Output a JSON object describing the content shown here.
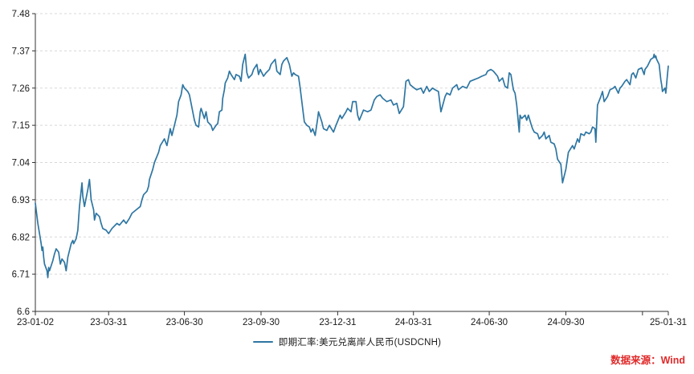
{
  "legend": {
    "label": "即期汇率:美元兑离岸人民币(USDCNH)"
  },
  "source": {
    "text": "数据来源：Wind",
    "color": "#e02a2a"
  },
  "colors": {
    "background": "#ffffff",
    "axis": "#333333",
    "grid": "#d8d8d8",
    "tick_text": "#1a1a1a",
    "series": "#2e76a2"
  },
  "chart_data": {
    "type": "line",
    "title": "",
    "xlabel": "",
    "ylabel": "",
    "grid": "horizontal-dashed",
    "legend_position": "bottom-center",
    "series_name": "即期汇率:美元兑离岸人民币(USDCNH)",
    "y_axis": {
      "min": 6.6,
      "max": 7.48,
      "ticks": [
        {
          "v": 6.6,
          "label": "6.6"
        },
        {
          "v": 6.71,
          "label": "6.71"
        },
        {
          "v": 6.82,
          "label": "6.82"
        },
        {
          "v": 6.93,
          "label": "6.93"
        },
        {
          "v": 7.04,
          "label": "7.04"
        },
        {
          "v": 7.15,
          "label": "7.15"
        },
        {
          "v": 7.26,
          "label": "7.26"
        },
        {
          "v": 7.37,
          "label": "7.37"
        },
        {
          "v": 7.48,
          "label": "7.48"
        }
      ]
    },
    "x_axis": {
      "start": "2023-01-02",
      "end": "2025-01-31",
      "ticks": [
        {
          "d": "2023-01-02",
          "label": "23-01-02"
        },
        {
          "d": "2023-03-31",
          "label": "23-03-31"
        },
        {
          "d": "2023-06-30",
          "label": "23-06-30"
        },
        {
          "d": "2023-09-30",
          "label": "23-09-30"
        },
        {
          "d": "2023-12-31",
          "label": "23-12-31"
        },
        {
          "d": "2024-03-31",
          "label": "24-03-31"
        },
        {
          "d": "2024-06-30",
          "label": "24-06-30"
        },
        {
          "d": "2024-09-30",
          "label": "24-09-30"
        },
        {
          "d": "2024-12-31",
          "label": ""
        },
        {
          "d": "2025-01-31",
          "label": "25-01-31"
        }
      ]
    },
    "points": [
      [
        "2023-01-02",
        6.92
      ],
      [
        "2023-01-04",
        6.88
      ],
      [
        "2023-01-05",
        6.86
      ],
      [
        "2023-01-09",
        6.8
      ],
      [
        "2023-01-10",
        6.78
      ],
      [
        "2023-01-11",
        6.79
      ],
      [
        "2023-01-12",
        6.76
      ],
      [
        "2023-01-13",
        6.74
      ],
      [
        "2023-01-16",
        6.72
      ],
      [
        "2023-01-17",
        6.7
      ],
      [
        "2023-01-18",
        6.73
      ],
      [
        "2023-01-19",
        6.72
      ],
      [
        "2023-01-23",
        6.75
      ],
      [
        "2023-01-25",
        6.77
      ],
      [
        "2023-01-27",
        6.785
      ],
      [
        "2023-01-30",
        6.775
      ],
      [
        "2023-02-01",
        6.74
      ],
      [
        "2023-02-03",
        6.755
      ],
      [
        "2023-02-06",
        6.745
      ],
      [
        "2023-02-08",
        6.72
      ],
      [
        "2023-02-10",
        6.76
      ],
      [
        "2023-02-14",
        6.8
      ],
      [
        "2023-02-16",
        6.81
      ],
      [
        "2023-02-17",
        6.8
      ],
      [
        "2023-02-20",
        6.815
      ],
      [
        "2023-02-22",
        6.84
      ],
      [
        "2023-02-24",
        6.91
      ],
      [
        "2023-02-27",
        6.98
      ],
      [
        "2023-02-28",
        6.94
      ],
      [
        "2023-03-02",
        6.91
      ],
      [
        "2023-03-06",
        6.96
      ],
      [
        "2023-03-08",
        6.99
      ],
      [
        "2023-03-10",
        6.93
      ],
      [
        "2023-03-13",
        6.9
      ],
      [
        "2023-03-14",
        6.87
      ],
      [
        "2023-03-16",
        6.89
      ],
      [
        "2023-03-20",
        6.88
      ],
      [
        "2023-03-22",
        6.86
      ],
      [
        "2023-03-24",
        6.845
      ],
      [
        "2023-03-28",
        6.84
      ],
      [
        "2023-03-31",
        6.83
      ],
      [
        "2023-04-04",
        6.845
      ],
      [
        "2023-04-10",
        6.86
      ],
      [
        "2023-04-13",
        6.855
      ],
      [
        "2023-04-18",
        6.87
      ],
      [
        "2023-04-21",
        6.86
      ],
      [
        "2023-04-25",
        6.875
      ],
      [
        "2023-04-28",
        6.89
      ],
      [
        "2023-05-03",
        6.9
      ],
      [
        "2023-05-08",
        6.91
      ],
      [
        "2023-05-10",
        6.93
      ],
      [
        "2023-05-12",
        6.945
      ],
      [
        "2023-05-16",
        6.955
      ],
      [
        "2023-05-18",
        6.97
      ],
      [
        "2023-05-19",
        6.99
      ],
      [
        "2023-05-23",
        7.02
      ],
      [
        "2023-05-25",
        7.04
      ],
      [
        "2023-05-30",
        7.07
      ],
      [
        "2023-06-01",
        7.09
      ],
      [
        "2023-06-06",
        7.11
      ],
      [
        "2023-06-09",
        7.09
      ],
      [
        "2023-06-13",
        7.14
      ],
      [
        "2023-06-15",
        7.12
      ],
      [
        "2023-06-19",
        7.16
      ],
      [
        "2023-06-21",
        7.18
      ],
      [
        "2023-06-23",
        7.22
      ],
      [
        "2023-06-26",
        7.24
      ],
      [
        "2023-06-28",
        7.27
      ],
      [
        "2023-06-30",
        7.26
      ],
      [
        "2023-07-04",
        7.25
      ],
      [
        "2023-07-06",
        7.24
      ],
      [
        "2023-07-10",
        7.19
      ],
      [
        "2023-07-12",
        7.165
      ],
      [
        "2023-07-14",
        7.15
      ],
      [
        "2023-07-17",
        7.145
      ],
      [
        "2023-07-19",
        7.19
      ],
      [
        "2023-07-20",
        7.2
      ],
      [
        "2023-07-24",
        7.17
      ],
      [
        "2023-07-26",
        7.19
      ],
      [
        "2023-07-28",
        7.16
      ],
      [
        "2023-08-01",
        7.15
      ],
      [
        "2023-08-03",
        7.135
      ],
      [
        "2023-08-07",
        7.15
      ],
      [
        "2023-08-09",
        7.155
      ],
      [
        "2023-08-11",
        7.19
      ],
      [
        "2023-08-14",
        7.195
      ],
      [
        "2023-08-15",
        7.23
      ],
      [
        "2023-08-17",
        7.255
      ],
      [
        "2023-08-18",
        7.275
      ],
      [
        "2023-08-21",
        7.29
      ],
      [
        "2023-08-23",
        7.31
      ],
      [
        "2023-08-25",
        7.3
      ],
      [
        "2023-08-29",
        7.285
      ],
      [
        "2023-08-31",
        7.3
      ],
      [
        "2023-09-04",
        7.295
      ],
      [
        "2023-09-06",
        7.28
      ],
      [
        "2023-09-08",
        7.33
      ],
      [
        "2023-09-11",
        7.36
      ],
      [
        "2023-09-13",
        7.305
      ],
      [
        "2023-09-15",
        7.29
      ],
      [
        "2023-09-19",
        7.3
      ],
      [
        "2023-09-21",
        7.315
      ],
      [
        "2023-09-25",
        7.33
      ],
      [
        "2023-09-27",
        7.3
      ],
      [
        "2023-09-29",
        7.315
      ],
      [
        "2023-10-03",
        7.295
      ],
      [
        "2023-10-06",
        7.305
      ],
      [
        "2023-10-10",
        7.315
      ],
      [
        "2023-10-12",
        7.33
      ],
      [
        "2023-10-17",
        7.345
      ],
      [
        "2023-10-19",
        7.31
      ],
      [
        "2023-10-23",
        7.3
      ],
      [
        "2023-10-25",
        7.33
      ],
      [
        "2023-10-27",
        7.34
      ],
      [
        "2023-10-31",
        7.35
      ],
      [
        "2023-11-03",
        7.33
      ],
      [
        "2023-11-06",
        7.295
      ],
      [
        "2023-11-08",
        7.305
      ],
      [
        "2023-11-10",
        7.3
      ],
      [
        "2023-11-14",
        7.295
      ],
      [
        "2023-11-16",
        7.26
      ],
      [
        "2023-11-17",
        7.24
      ],
      [
        "2023-11-20",
        7.18
      ],
      [
        "2023-11-21",
        7.16
      ],
      [
        "2023-11-24",
        7.15
      ],
      [
        "2023-11-27",
        7.145
      ],
      [
        "2023-11-29",
        7.13
      ],
      [
        "2023-12-01",
        7.14
      ],
      [
        "2023-12-04",
        7.12
      ],
      [
        "2023-12-07",
        7.17
      ],
      [
        "2023-12-08",
        7.19
      ],
      [
        "2023-12-12",
        7.16
      ],
      [
        "2023-12-14",
        7.14
      ],
      [
        "2023-12-18",
        7.135
      ],
      [
        "2023-12-21",
        7.15
      ],
      [
        "2023-12-26",
        7.13
      ],
      [
        "2023-12-29",
        7.15
      ],
      [
        "2024-01-03",
        7.18
      ],
      [
        "2024-01-05",
        7.17
      ],
      [
        "2024-01-10",
        7.19
      ],
      [
        "2024-01-12",
        7.2
      ],
      [
        "2024-01-16",
        7.19
      ],
      [
        "2024-01-18",
        7.22
      ],
      [
        "2024-01-22",
        7.22
      ],
      [
        "2024-01-24",
        7.18
      ],
      [
        "2024-01-26",
        7.165
      ],
      [
        "2024-01-31",
        7.195
      ],
      [
        "2024-02-05",
        7.19
      ],
      [
        "2024-02-09",
        7.195
      ],
      [
        "2024-02-13",
        7.225
      ],
      [
        "2024-02-16",
        7.235
      ],
      [
        "2024-02-20",
        7.24
      ],
      [
        "2024-02-23",
        7.23
      ],
      [
        "2024-02-28",
        7.22
      ],
      [
        "2024-03-04",
        7.225
      ],
      [
        "2024-03-07",
        7.21
      ],
      [
        "2024-03-11",
        7.215
      ],
      [
        "2024-03-14",
        7.185
      ],
      [
        "2024-03-19",
        7.205
      ],
      [
        "2024-03-22",
        7.28
      ],
      [
        "2024-03-25",
        7.285
      ],
      [
        "2024-03-27",
        7.27
      ],
      [
        "2024-04-01",
        7.26
      ],
      [
        "2024-04-04",
        7.255
      ],
      [
        "2024-04-09",
        7.26
      ],
      [
        "2024-04-12",
        7.245
      ],
      [
        "2024-04-16",
        7.265
      ],
      [
        "2024-04-19",
        7.25
      ],
      [
        "2024-04-23",
        7.26
      ],
      [
        "2024-04-26",
        7.255
      ],
      [
        "2024-04-30",
        7.25
      ],
      [
        "2024-05-03",
        7.19
      ],
      [
        "2024-05-08",
        7.235
      ],
      [
        "2024-05-10",
        7.245
      ],
      [
        "2024-05-14",
        7.24
      ],
      [
        "2024-05-17",
        7.26
      ],
      [
        "2024-05-22",
        7.27
      ],
      [
        "2024-05-24",
        7.255
      ],
      [
        "2024-05-29",
        7.265
      ],
      [
        "2024-06-03",
        7.26
      ],
      [
        "2024-06-07",
        7.28
      ],
      [
        "2024-06-12",
        7.285
      ],
      [
        "2024-06-17",
        7.29
      ],
      [
        "2024-06-21",
        7.295
      ],
      [
        "2024-06-26",
        7.3
      ],
      [
        "2024-06-28",
        7.31
      ],
      [
        "2024-07-02",
        7.315
      ],
      [
        "2024-07-05",
        7.31
      ],
      [
        "2024-07-10",
        7.295
      ],
      [
        "2024-07-12",
        7.28
      ],
      [
        "2024-07-16",
        7.29
      ],
      [
        "2024-07-19",
        7.265
      ],
      [
        "2024-07-22",
        7.26
      ],
      [
        "2024-07-24",
        7.305
      ],
      [
        "2024-07-26",
        7.3
      ],
      [
        "2024-07-29",
        7.255
      ],
      [
        "2024-07-31",
        7.245
      ],
      [
        "2024-08-02",
        7.21
      ],
      [
        "2024-08-05",
        7.13
      ],
      [
        "2024-08-06",
        7.18
      ],
      [
        "2024-08-08",
        7.17
      ],
      [
        "2024-08-12",
        7.18
      ],
      [
        "2024-08-14",
        7.165
      ],
      [
        "2024-08-16",
        7.18
      ],
      [
        "2024-08-19",
        7.155
      ],
      [
        "2024-08-21",
        7.14
      ],
      [
        "2024-08-23",
        7.13
      ],
      [
        "2024-08-27",
        7.125
      ],
      [
        "2024-08-29",
        7.11
      ],
      [
        "2024-09-02",
        7.12
      ],
      [
        "2024-09-04",
        7.13
      ],
      [
        "2024-09-06",
        7.11
      ],
      [
        "2024-09-10",
        7.12
      ],
      [
        "2024-09-12",
        7.1
      ],
      [
        "2024-09-16",
        7.095
      ],
      [
        "2024-09-18",
        7.08
      ],
      [
        "2024-09-20",
        7.05
      ],
      [
        "2024-09-24",
        7.035
      ],
      [
        "2024-09-26",
        6.98
      ],
      [
        "2024-09-30",
        7.02
      ],
      [
        "2024-10-03",
        7.07
      ],
      [
        "2024-10-08",
        7.09
      ],
      [
        "2024-10-10",
        7.08
      ],
      [
        "2024-10-14",
        7.11
      ],
      [
        "2024-10-16",
        7.1
      ],
      [
        "2024-10-18",
        7.125
      ],
      [
        "2024-10-22",
        7.12
      ],
      [
        "2024-10-24",
        7.13
      ],
      [
        "2024-10-28",
        7.125
      ],
      [
        "2024-10-30",
        7.13
      ],
      [
        "2024-11-01",
        7.145
      ],
      [
        "2024-11-04",
        7.14
      ],
      [
        "2024-11-05",
        7.1
      ],
      [
        "2024-11-07",
        7.21
      ],
      [
        "2024-11-11",
        7.235
      ],
      [
        "2024-11-13",
        7.25
      ],
      [
        "2024-11-15",
        7.22
      ],
      [
        "2024-11-19",
        7.235
      ],
      [
        "2024-11-22",
        7.255
      ],
      [
        "2024-11-26",
        7.26
      ],
      [
        "2024-11-28",
        7.265
      ],
      [
        "2024-12-02",
        7.245
      ],
      [
        "2024-12-04",
        7.26
      ],
      [
        "2024-12-06",
        7.265
      ],
      [
        "2024-12-10",
        7.28
      ],
      [
        "2024-12-12",
        7.285
      ],
      [
        "2024-12-16",
        7.27
      ],
      [
        "2024-12-18",
        7.3
      ],
      [
        "2024-12-20",
        7.305
      ],
      [
        "2024-12-23",
        7.29
      ],
      [
        "2024-12-26",
        7.315
      ],
      [
        "2024-12-30",
        7.32
      ],
      [
        "2025-01-02",
        7.3
      ],
      [
        "2025-01-03",
        7.315
      ],
      [
        "2025-01-06",
        7.325
      ],
      [
        "2025-01-08",
        7.335
      ],
      [
        "2025-01-10",
        7.345
      ],
      [
        "2025-01-13",
        7.35
      ],
      [
        "2025-01-14",
        7.36
      ],
      [
        "2025-01-15",
        7.35
      ],
      [
        "2025-01-16",
        7.355
      ],
      [
        "2025-01-17",
        7.345
      ],
      [
        "2025-01-20",
        7.33
      ],
      [
        "2025-01-22",
        7.285
      ],
      [
        "2025-01-23",
        7.27
      ],
      [
        "2025-01-24",
        7.25
      ],
      [
        "2025-01-27",
        7.26
      ],
      [
        "2025-01-28",
        7.245
      ],
      [
        "2025-01-30",
        7.3
      ],
      [
        "2025-01-31",
        7.325
      ]
    ]
  }
}
